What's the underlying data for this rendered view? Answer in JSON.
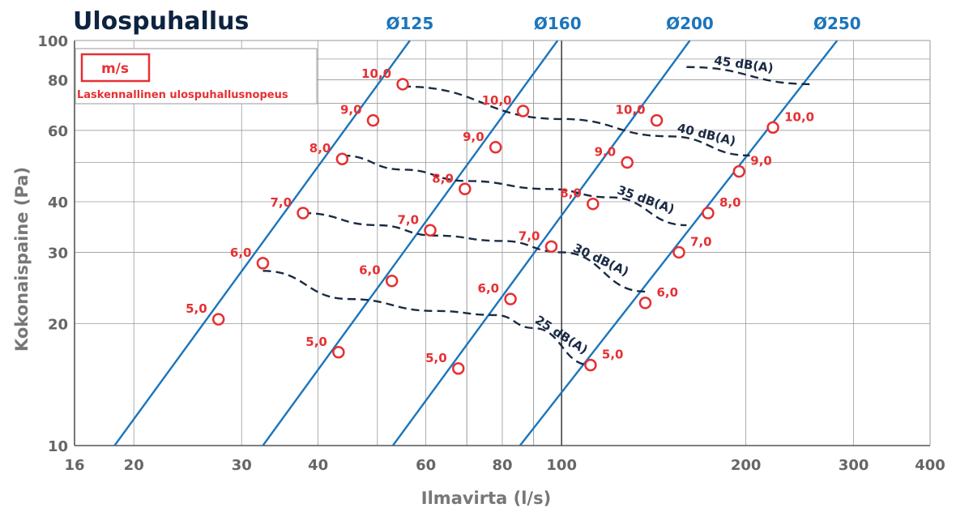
{
  "title": "Ulospuhallus",
  "legend": {
    "unit": "m/s",
    "description": "Laskennallinen ulospuhallusnopeus"
  },
  "colors": {
    "duct_line": "#1b75bb",
    "velocity_marker": "#e63033",
    "sound_curve": "#1a2a44",
    "grid": "#9a9a9a",
    "title": "#0d2340"
  },
  "chart_data": {
    "type": "line",
    "title": "Ulospuhallus",
    "xlabel": "Ilmavirta (l/s)",
    "ylabel": "Kokonaispaine (Pa)",
    "xscale": "log",
    "yscale": "log",
    "xlim": [
      16,
      400
    ],
    "ylim": [
      10,
      100
    ],
    "grid": true,
    "x_ticks": [
      {
        "v": 16,
        "label": "16"
      },
      {
        "v": 20,
        "label": "20"
      },
      {
        "v": 30,
        "label": "30"
      },
      {
        "v": 40,
        "label": "40"
      },
      {
        "v": 60,
        "label": "60"
      },
      {
        "v": 80,
        "label": "80"
      },
      {
        "v": 100,
        "label": "100"
      },
      {
        "v": 200,
        "label": "200"
      },
      {
        "v": 300,
        "label": "300"
      },
      {
        "v": 400,
        "label": "400"
      }
    ],
    "y_ticks": [
      {
        "v": 10,
        "label": "10"
      },
      {
        "v": 20,
        "label": "20"
      },
      {
        "v": 30,
        "label": "30"
      },
      {
        "v": 40,
        "label": "40"
      },
      {
        "v": 60,
        "label": "60"
      },
      {
        "v": 80,
        "label": "80"
      },
      {
        "v": 100,
        "label": "100"
      }
    ],
    "series": [
      {
        "name": "Ø125",
        "line": [
          [
            18.6,
            10
          ],
          [
            56.5,
            100
          ]
        ],
        "points": [
          {
            "x": 27.5,
            "y": 20.5,
            "label": "5,0"
          },
          {
            "x": 32.5,
            "y": 28.2,
            "label": "6,0"
          },
          {
            "x": 37.8,
            "y": 37.5,
            "label": "7,0"
          },
          {
            "x": 43.8,
            "y": 51.0,
            "label": "8,0"
          },
          {
            "x": 49.2,
            "y": 63.5,
            "label": "9,0"
          },
          {
            "x": 55.0,
            "y": 78.0,
            "label": "10,0"
          }
        ]
      },
      {
        "name": "Ø160",
        "line": [
          [
            32.5,
            10
          ],
          [
            98.5,
            100
          ]
        ],
        "points": [
          {
            "x": 43.2,
            "y": 17.0,
            "label": "5,0"
          },
          {
            "x": 52.8,
            "y": 25.5,
            "label": "6,0"
          },
          {
            "x": 61.0,
            "y": 34.0,
            "label": "7,0"
          },
          {
            "x": 69.5,
            "y": 43.0,
            "label": "8,0"
          },
          {
            "x": 78.0,
            "y": 54.5,
            "label": "9,0"
          },
          {
            "x": 86.5,
            "y": 67.0,
            "label": "10,0"
          }
        ]
      },
      {
        "name": "Ø200",
        "line": [
          [
            53.0,
            10
          ],
          [
            162.0,
            100
          ]
        ],
        "points": [
          {
            "x": 67.8,
            "y": 15.5,
            "label": "5,0"
          },
          {
            "x": 82.5,
            "y": 23.0,
            "label": "6,0"
          },
          {
            "x": 96.2,
            "y": 31.0,
            "label": "7,0"
          },
          {
            "x": 112.5,
            "y": 39.5,
            "label": "8,0"
          },
          {
            "x": 128.0,
            "y": 50.0,
            "label": "9,0"
          },
          {
            "x": 143.0,
            "y": 63.5,
            "label": "10,0"
          }
        ]
      },
      {
        "name": "Ø250",
        "line": [
          [
            85.5,
            10
          ],
          [
            282.0,
            100
          ]
        ],
        "points": [
          {
            "x": 111.5,
            "y": 15.8,
            "label": "5,0"
          },
          {
            "x": 137.0,
            "y": 22.5,
            "label": "6,0"
          },
          {
            "x": 155.5,
            "y": 30.0,
            "label": "7,0"
          },
          {
            "x": 173.5,
            "y": 37.5,
            "label": "8,0"
          },
          {
            "x": 195.0,
            "y": 47.5,
            "label": "9,0"
          },
          {
            "x": 221.5,
            "y": 61.0,
            "label": "10,0"
          }
        ]
      }
    ],
    "sound_curves": [
      {
        "label": "25 dB(A)",
        "points": [
          [
            32.5,
            27.0
          ],
          [
            45.0,
            23.0
          ],
          [
            62.0,
            21.5
          ],
          [
            78.0,
            21.0
          ],
          [
            90.0,
            19.5
          ],
          [
            111.5,
            15.8
          ]
        ]
      },
      {
        "label": "30 dB(A)",
        "points": [
          [
            37.8,
            37.5
          ],
          [
            50.0,
            35.0
          ],
          [
            62.0,
            33.0
          ],
          [
            80.0,
            32.0
          ],
          [
            100.0,
            30.0
          ],
          [
            137.0,
            24.0
          ]
        ]
      },
      {
        "label": "35 dB(A)",
        "points": [
          [
            43.8,
            52.0
          ],
          [
            55.0,
            48.0
          ],
          [
            70.0,
            45.0
          ],
          [
            95.0,
            43.0
          ],
          [
            120.0,
            41.0
          ],
          [
            160.0,
            35.0
          ]
        ]
      },
      {
        "label": "40 dB(A)",
        "points": [
          [
            55.0,
            77.0
          ],
          [
            100.0,
            64.0
          ],
          [
            150.0,
            58.0
          ],
          [
            203.0,
            52.0
          ]
        ]
      },
      {
        "label": "45 dB(A)",
        "points": [
          [
            160.0,
            86.0
          ],
          [
            257.0,
            78.0
          ]
        ]
      }
    ]
  }
}
